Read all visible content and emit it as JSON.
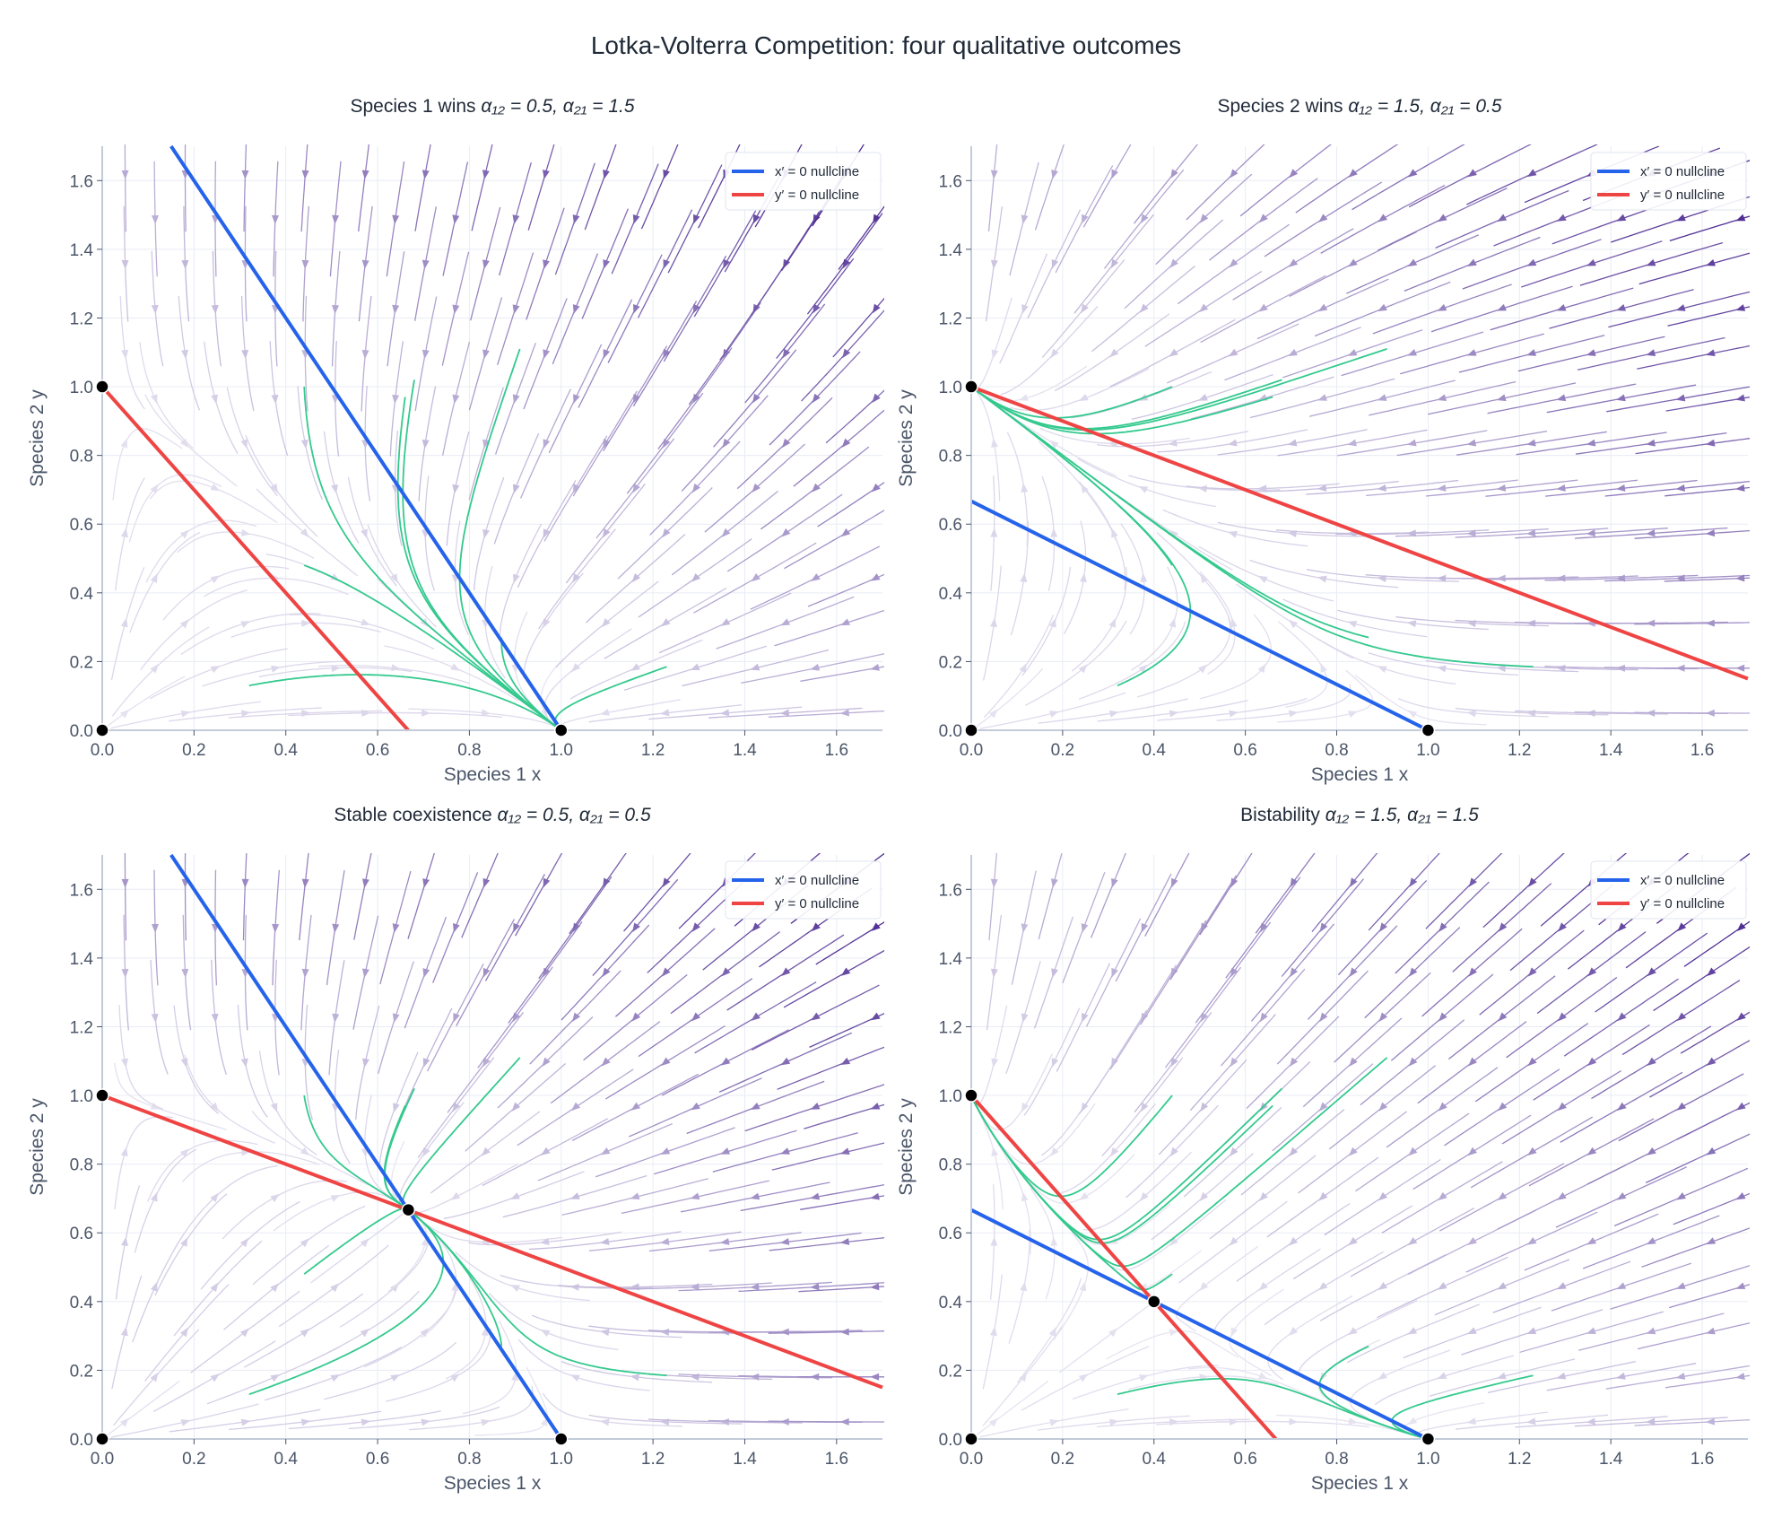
{
  "figure_title": "Lotka-Volterra Competition:  four qualitative outcomes",
  "colors": {
    "x_nullcline": "#2563eb",
    "y_nullcline": "#ef4444",
    "trajectory": "#34c98e",
    "equilibrium": "#000000",
    "stream_low": "#eceaf4",
    "stream_high": "#3f1a8a",
    "grid": "#e8ecf4",
    "axis": "#c3cbd9"
  },
  "chart_data": [
    {
      "type": "line",
      "title": "Species 1 wins",
      "params_text": "α₁₂ = 0.5,  α₂₁ = 1.5",
      "a12": 0.5,
      "a21": 1.5,
      "xlabel": "Species 1  x",
      "ylabel": "Species 2  y",
      "xlim": [
        0,
        1.7
      ],
      "ylim": [
        0,
        1.7
      ],
      "xticks": [
        "0.0",
        "0.2",
        "0.4",
        "0.6",
        "0.8",
        "1.0",
        "1.2",
        "1.4",
        "1.6"
      ],
      "yticks": [
        "0.0",
        "0.2",
        "0.4",
        "0.6",
        "0.8",
        "1.0",
        "1.2",
        "1.4",
        "1.6"
      ],
      "legend": [
        "x′ = 0 nullcline",
        "y′ = 0 nullcline"
      ],
      "legend_position": "top-right",
      "grid": true,
      "equilibria": [
        [
          0,
          0
        ],
        [
          1,
          0
        ],
        [
          0,
          1
        ]
      ]
    },
    {
      "type": "line",
      "title": "Species 2 wins",
      "params_text": "α₁₂ = 1.5,  α₂₁ = 0.5",
      "a12": 1.5,
      "a21": 0.5,
      "xlabel": "Species 1  x",
      "ylabel": "Species 2  y",
      "xlim": [
        0,
        1.7
      ],
      "ylim": [
        0,
        1.7
      ],
      "xticks": [
        "0.0",
        "0.2",
        "0.4",
        "0.6",
        "0.8",
        "1.0",
        "1.2",
        "1.4",
        "1.6"
      ],
      "yticks": [
        "0.0",
        "0.2",
        "0.4",
        "0.6",
        "0.8",
        "1.0",
        "1.2",
        "1.4",
        "1.6"
      ],
      "legend": [
        "x′ = 0 nullcline",
        "y′ = 0 nullcline"
      ],
      "legend_position": "top-right",
      "grid": true,
      "equilibria": [
        [
          0,
          0
        ],
        [
          1,
          0
        ],
        [
          0,
          1
        ]
      ]
    },
    {
      "type": "line",
      "title": "Stable coexistence",
      "params_text": "α₁₂ = 0.5,  α₂₁ = 0.5",
      "a12": 0.5,
      "a21": 0.5,
      "xlabel": "Species 1  x",
      "ylabel": "Species 2  y",
      "xlim": [
        0,
        1.7
      ],
      "ylim": [
        0,
        1.7
      ],
      "xticks": [
        "0.0",
        "0.2",
        "0.4",
        "0.6",
        "0.8",
        "1.0",
        "1.2",
        "1.4",
        "1.6"
      ],
      "yticks": [
        "0.0",
        "0.2",
        "0.4",
        "0.6",
        "0.8",
        "1.0",
        "1.2",
        "1.4",
        "1.6"
      ],
      "legend": [
        "x′ = 0 nullcline",
        "y′ = 0 nullcline"
      ],
      "legend_position": "top-right",
      "grid": true,
      "equilibria": [
        [
          0,
          0
        ],
        [
          1,
          0
        ],
        [
          0,
          1
        ],
        [
          0.667,
          0.667
        ]
      ]
    },
    {
      "type": "line",
      "title": "Bistability",
      "params_text": "α₁₂ = 1.5,  α₂₁ = 1.5",
      "a12": 1.5,
      "a21": 1.5,
      "xlabel": "Species 1  x",
      "ylabel": "Species 2  y",
      "xlim": [
        0,
        1.7
      ],
      "ylim": [
        0,
        1.7
      ],
      "xticks": [
        "0.0",
        "0.2",
        "0.4",
        "0.6",
        "0.8",
        "1.0",
        "1.2",
        "1.4",
        "1.6"
      ],
      "yticks": [
        "0.0",
        "0.2",
        "0.4",
        "0.6",
        "0.8",
        "1.0",
        "1.2",
        "1.4",
        "1.6"
      ],
      "legend": [
        "x′ = 0 nullcline",
        "y′ = 0 nullcline"
      ],
      "legend_position": "top-right",
      "grid": true,
      "equilibria": [
        [
          0,
          0
        ],
        [
          1,
          0
        ],
        [
          0,
          1
        ],
        [
          0.4,
          0.4
        ]
      ]
    }
  ],
  "trajectory_starts": [
    [
      0.32,
      0.13
    ],
    [
      0.44,
      0.48
    ],
    [
      0.44,
      1.0
    ],
    [
      0.66,
      0.97
    ],
    [
      0.68,
      1.02
    ],
    [
      0.91,
      1.11
    ],
    [
      0.87,
      0.27
    ],
    [
      1.23,
      0.185
    ]
  ]
}
